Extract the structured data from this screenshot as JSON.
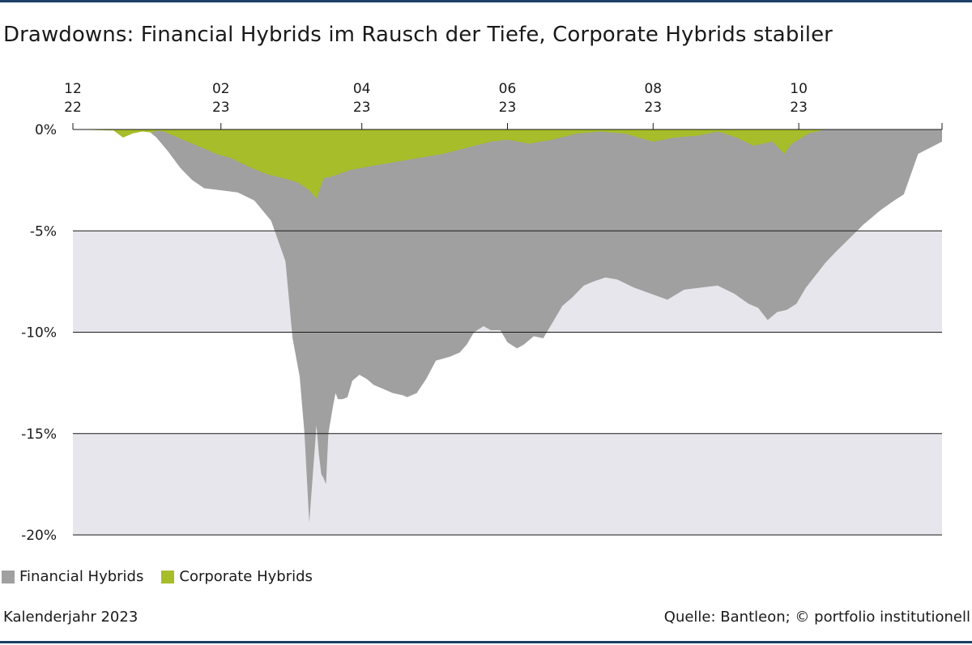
{
  "title": "Drawdowns: Financial Hybrids im Rausch der Tiefe, Corporate Hybrids stabiler",
  "footer": {
    "left": "Kalenderjahr 2023",
    "right": "Quelle: Bantleon; © portfolio institutionell"
  },
  "colors": {
    "financial": "#a0a0a0",
    "corporate": "#a7bd2a",
    "band": "#e7e6ec",
    "rule": "#1c3f66"
  },
  "chart_data": {
    "type": "area",
    "x_axis_position": "top",
    "x_ticks": [
      {
        "x": "2022-12",
        "label": [
          "12",
          "22"
        ]
      },
      {
        "x": "2023-02",
        "label": [
          "02",
          "23"
        ]
      },
      {
        "x": "2023-04",
        "label": [
          "04",
          "23"
        ]
      },
      {
        "x": "2023-06",
        "label": [
          "06",
          "23"
        ]
      },
      {
        "x": "2023-08",
        "label": [
          "08",
          "23"
        ]
      },
      {
        "x": "2023-10",
        "label": [
          "10",
          "23"
        ]
      }
    ],
    "xlim": [
      "2022-12-01",
      "2023-11-30"
    ],
    "ylim": [
      -20,
      0
    ],
    "y_ticks": [
      0,
      -5,
      -10,
      -15,
      -20
    ],
    "y_tick_labels": [
      "0%",
      "-5%",
      "-10%",
      "-15%",
      "-20%"
    ],
    "alternating_bands": true,
    "legend_position": "bottom-left",
    "series": [
      {
        "name": "Financial Hybrids",
        "x": [
          "2022-12-01",
          "2022-12-15",
          "2023-01-01",
          "2023-01-05",
          "2023-01-10",
          "2023-01-15",
          "2023-01-20",
          "2023-01-25",
          "2023-02-01",
          "2023-02-08",
          "2023-02-15",
          "2023-02-22",
          "2023-02-28",
          "2023-03-03",
          "2023-03-06",
          "2023-03-08",
          "2023-03-10",
          "2023-03-13",
          "2023-03-14",
          "2023-03-15",
          "2023-03-16",
          "2023-03-17",
          "2023-03-18",
          "2023-03-20",
          "2023-03-21",
          "2023-03-22",
          "2023-03-24",
          "2023-03-26",
          "2023-03-28",
          "2023-03-31",
          "2023-04-03",
          "2023-04-06",
          "2023-04-10",
          "2023-04-14",
          "2023-04-18",
          "2023-04-20",
          "2023-04-24",
          "2023-04-28",
          "2023-05-02",
          "2023-05-05",
          "2023-05-08",
          "2023-05-12",
          "2023-05-15",
          "2023-05-18",
          "2023-05-22",
          "2023-05-25",
          "2023-05-29",
          "2023-06-01",
          "2023-06-05",
          "2023-06-08",
          "2023-06-12",
          "2023-06-16",
          "2023-06-20",
          "2023-06-24",
          "2023-06-28",
          "2023-07-03",
          "2023-07-07",
          "2023-07-12",
          "2023-07-17",
          "2023-07-24",
          "2023-07-31",
          "2023-08-07",
          "2023-08-14",
          "2023-08-21",
          "2023-08-28",
          "2023-09-04",
          "2023-09-10",
          "2023-09-14",
          "2023-09-18",
          "2023-09-22",
          "2023-09-26",
          "2023-09-30",
          "2023-10-04",
          "2023-10-08",
          "2023-10-12",
          "2023-10-16",
          "2023-10-22",
          "2023-10-28",
          "2023-11-04",
          "2023-11-10",
          "2023-11-14",
          "2023-11-20",
          "2023-11-30"
        ],
        "values": [
          0,
          0,
          0,
          -0.4,
          -1.1,
          -1.9,
          -2.5,
          -2.9,
          -3.0,
          -3.1,
          -3.5,
          -4.5,
          -6.5,
          -10.3,
          -12.2,
          -15.0,
          -19.4,
          -14.6,
          -16.0,
          -17.0,
          -17.2,
          -17.5,
          -15.0,
          -13.6,
          -13.0,
          -13.3,
          -13.3,
          -13.2,
          -12.4,
          -12.1,
          -12.3,
          -12.6,
          -12.8,
          -13.0,
          -13.1,
          -13.2,
          -13.0,
          -12.3,
          -11.4,
          -11.3,
          -11.2,
          -11.0,
          -10.6,
          -10.0,
          -9.7,
          -9.9,
          -9.9,
          -10.5,
          -10.8,
          -10.6,
          -10.2,
          -10.3,
          -9.5,
          -8.7,
          -8.3,
          -7.7,
          -7.5,
          -7.3,
          -7.4,
          -7.8,
          -8.1,
          -8.4,
          -7.9,
          -7.8,
          -7.7,
          -8.1,
          -8.6,
          -8.8,
          -9.4,
          -9.0,
          -8.9,
          -8.6,
          -7.8,
          -7.2,
          -6.6,
          -6.1,
          -5.4,
          -4.7,
          -4.0,
          -3.5,
          -3.2,
          -1.2,
          -0.6
        ]
      },
      {
        "name": "Corporate Hybrids",
        "x": [
          "2022-12-01",
          "2022-12-18",
          "2022-12-22",
          "2022-12-26",
          "2022-12-30",
          "2023-01-03",
          "2023-01-05",
          "2023-01-08",
          "2023-01-12",
          "2023-01-18",
          "2023-01-24",
          "2023-01-30",
          "2023-02-05",
          "2023-02-12",
          "2023-02-20",
          "2023-02-27",
          "2023-03-05",
          "2023-03-10",
          "2023-03-13",
          "2023-03-16",
          "2023-03-20",
          "2023-03-27",
          "2023-04-05",
          "2023-04-15",
          "2023-04-25",
          "2023-05-05",
          "2023-05-15",
          "2023-05-25",
          "2023-06-01",
          "2023-06-10",
          "2023-06-20",
          "2023-06-30",
          "2023-07-10",
          "2023-07-20",
          "2023-08-01",
          "2023-08-10",
          "2023-08-20",
          "2023-08-28",
          "2023-09-05",
          "2023-09-12",
          "2023-09-20",
          "2023-09-25",
          "2023-09-28",
          "2023-10-01",
          "2023-10-05",
          "2023-10-12",
          "2023-11-30"
        ],
        "values": [
          0,
          -0.05,
          -0.4,
          -0.2,
          -0.1,
          -0.15,
          -0.05,
          -0.1,
          -0.3,
          -0.6,
          -0.9,
          -1.2,
          -1.4,
          -1.8,
          -2.2,
          -2.4,
          -2.6,
          -3.0,
          -3.4,
          -2.4,
          -2.3,
          -2.0,
          -1.8,
          -1.6,
          -1.4,
          -1.2,
          -0.9,
          -0.6,
          -0.5,
          -0.7,
          -0.5,
          -0.2,
          -0.1,
          -0.2,
          -0.6,
          -0.4,
          -0.3,
          -0.1,
          -0.4,
          -0.8,
          -0.6,
          -1.2,
          -0.7,
          -0.5,
          -0.2,
          0,
          0
        ]
      }
    ]
  }
}
